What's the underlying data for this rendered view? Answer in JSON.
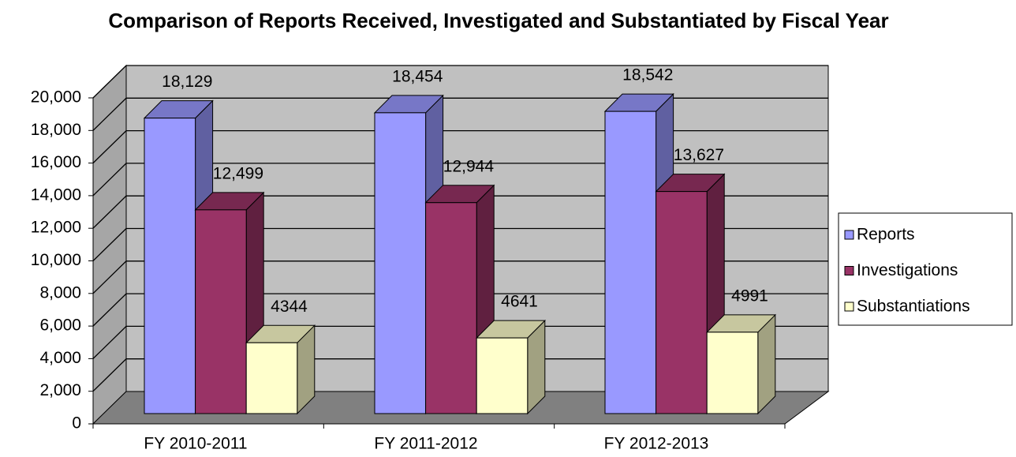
{
  "chart_data": {
    "type": "bar3d",
    "title": "Comparison of Reports Received, Investigated and Substantiated by Fiscal Year",
    "categories": [
      "FY 2010-2011",
      "FY 2011-2012",
      "FY 2012-2013"
    ],
    "series": [
      {
        "name": "Reports",
        "color": "#9999ff",
        "values": [
          18129,
          18454,
          18542
        ],
        "value_labels": [
          "18,129",
          "18,454",
          "18,542"
        ]
      },
      {
        "name": "Investigations",
        "color": "#993366",
        "values": [
          12499,
          12944,
          13627
        ],
        "value_labels": [
          "12,499",
          "12,944",
          "13,627"
        ]
      },
      {
        "name": "Substantiations",
        "color": "#ffffcc",
        "values": [
          4344,
          4641,
          4991
        ]
      }
    ],
    "ylim": [
      0,
      20000
    ],
    "yticks": [
      0,
      {
        "value": 2000,
        "label": "2,000"
      },
      {
        "value": 4000,
        "label": "4,000"
      },
      {
        "value": 6000,
        "label": "6,000"
      },
      {
        "value": 8000,
        "label": "8,000"
      },
      {
        "value": 10000,
        "label": "10,000"
      },
      {
        "value": 12000,
        "label": "12,000"
      },
      {
        "value": 14000,
        "label": "14,000"
      },
      {
        "value": 16000,
        "label": "16,000"
      },
      {
        "value": 18000,
        "label": "18,000"
      },
      {
        "value": 20000,
        "label": "20,000"
      }
    ],
    "grid": true,
    "legend": "right"
  }
}
